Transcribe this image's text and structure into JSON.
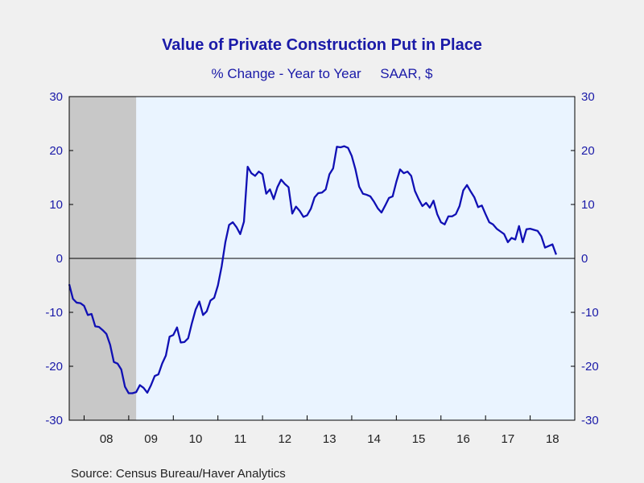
{
  "chart_data": {
    "type": "line",
    "title": "Value of Private Construction Put in Place",
    "subtitle": "% Change - Year to Year     SAAR, $",
    "source": "Source:  Census Bureau/Haver Analytics",
    "ylim": [
      -30,
      30
    ],
    "yticks": [
      -30,
      -20,
      -10,
      0,
      10,
      20,
      30
    ],
    "xlim": [
      2007.6667,
      2019.0
    ],
    "xtick_labels": [
      {
        "label": "08",
        "x": 2008.5
      },
      {
        "label": "09",
        "x": 2009.5
      },
      {
        "label": "10",
        "x": 2010.5
      },
      {
        "label": "11",
        "x": 2011.5
      },
      {
        "label": "12",
        "x": 2012.5
      },
      {
        "label": "13",
        "x": 2013.5
      },
      {
        "label": "14",
        "x": 2014.5
      },
      {
        "label": "15",
        "x": 2015.5
      },
      {
        "label": "16",
        "x": 2016.5
      },
      {
        "label": "17",
        "x": 2017.5
      },
      {
        "label": "18",
        "x": 2018.5
      }
    ],
    "recession_shading": [
      2007.6667,
      2009.1667
    ],
    "grid": false,
    "line_color": "#1010b4",
    "plot_background": "#eaf4ff",
    "recession_color": "#c8c8c8",
    "series": [
      {
        "x_start": 2007.6667,
        "x_step": 0.0833333,
        "values": [
          -4.8,
          -7.5,
          -8.2,
          -8.3,
          -8.8,
          -10.5,
          -10.3,
          -12.6,
          -12.7,
          -13.3,
          -14.0,
          -16.0,
          -19.2,
          -19.5,
          -20.6,
          -23.8,
          -25.0,
          -25.0,
          -24.8,
          -23.5,
          -24.0,
          -24.9,
          -23.5,
          -21.8,
          -21.5,
          -19.5,
          -18.0,
          -14.5,
          -14.2,
          -12.8,
          -15.6,
          -15.5,
          -14.8,
          -12.0,
          -9.5,
          -8.0,
          -10.5,
          -9.8,
          -7.8,
          -7.3,
          -5.0,
          -1.5,
          3.0,
          6.2,
          6.7,
          5.8,
          4.5,
          6.8,
          17.0,
          15.8,
          15.3,
          16.1,
          15.6,
          12.0,
          12.8,
          11.0,
          13.2,
          14.6,
          13.8,
          13.2,
          8.3,
          9.6,
          8.8,
          7.7,
          8.0,
          9.2,
          11.3,
          12.1,
          12.2,
          12.8,
          15.6,
          16.7,
          20.7,
          20.6,
          20.8,
          20.5,
          19.0,
          16.5,
          13.3,
          12.0,
          11.8,
          11.5,
          10.5,
          9.3,
          8.5,
          9.8,
          11.2,
          11.5,
          14.2,
          16.5,
          15.8,
          16.1,
          15.3,
          12.5,
          11.0,
          9.7,
          10.3,
          9.4,
          10.7,
          8.2,
          6.7,
          6.3,
          7.8,
          7.8,
          8.2,
          9.7,
          12.6,
          13.6,
          12.4,
          11.3,
          9.5,
          9.8,
          8.2,
          6.7,
          6.3,
          5.5,
          5.0,
          4.5,
          3.0,
          3.8,
          3.5,
          6.0,
          3.0,
          5.4,
          5.5,
          5.3,
          5.1,
          4.1,
          2.0,
          2.3,
          2.6,
          0.7
        ]
      }
    ]
  }
}
